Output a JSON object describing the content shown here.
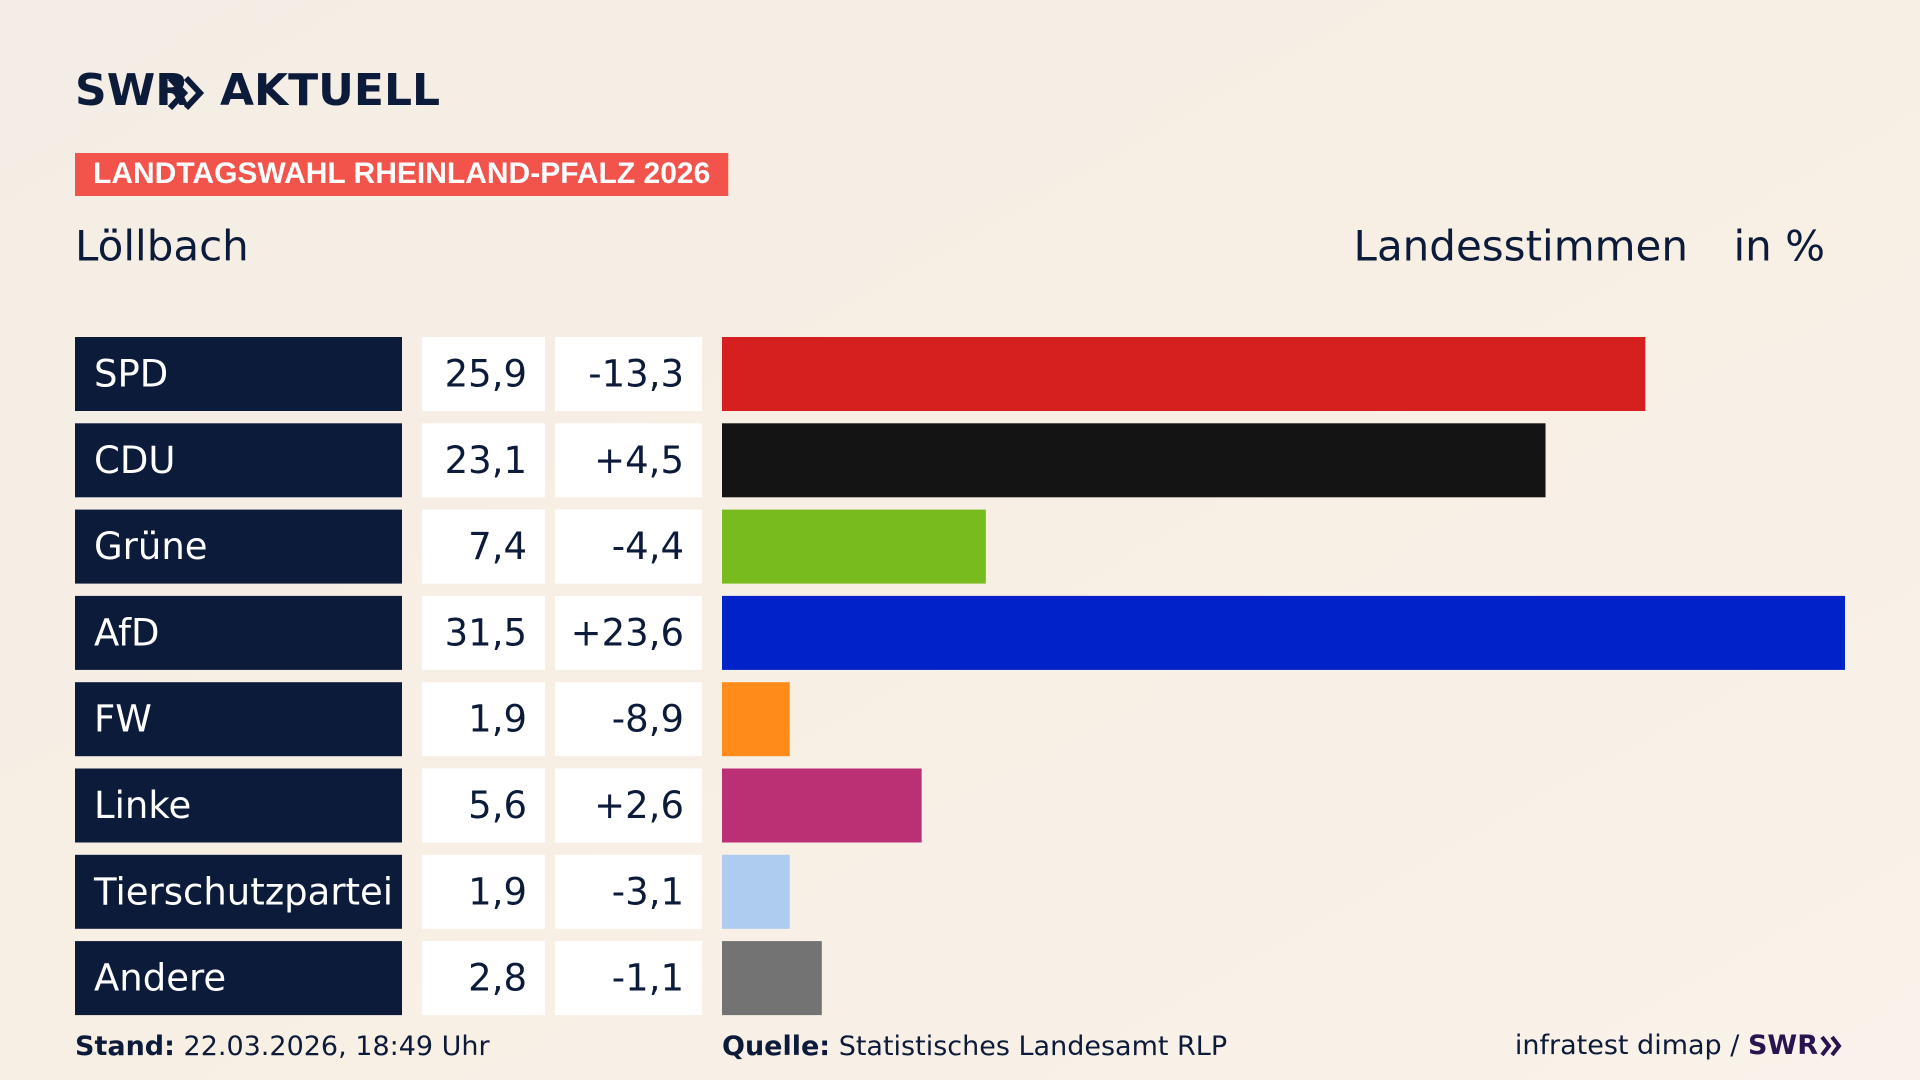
{
  "logo": "SWR",
  "brand": "AKTUELL",
  "header": {
    "title": "LANDTAGSWAHL RHEINLAND-PFALZ 2026",
    "subtitle": "Löllbach",
    "measure": "Landesstimmen",
    "unit": "in %"
  },
  "chart_data": {
    "type": "bar",
    "orientation": "horizontal",
    "categories": [
      "SPD",
      "CDU",
      "Grüne",
      "AfD",
      "FW",
      "Linke",
      "Tierschutzpartei",
      "Andere"
    ],
    "values": [
      25.9,
      23.1,
      7.4,
      31.5,
      1.9,
      5.6,
      1.9,
      2.8
    ],
    "value_labels": [
      "25,9",
      "23,1",
      "7,4",
      "31,5",
      "1,9",
      "5,6",
      "1,9",
      "2,8"
    ],
    "changes": [
      -13.3,
      4.5,
      -4.4,
      23.6,
      -8.9,
      2.6,
      -3.1,
      -1.1
    ],
    "change_labels": [
      "-13,3",
      "+4,5",
      "-4,4",
      "+23,6",
      "-8,9",
      "+2,6",
      "-3,1",
      "-1,1"
    ],
    "colors": [
      "#d61f1f",
      "#141414",
      "#78bb1e",
      "#0022c8",
      "#ff8c1a",
      "#bb2f75",
      "#aecbf0",
      "#737373"
    ],
    "xlim": [
      0,
      31.5
    ]
  },
  "footer": {
    "stand_label": "Stand:",
    "stand": "22.03.2026, 18:49 Uhr",
    "source_label": "Quelle:",
    "source": "Statistisches Landesamt RLP",
    "credit": "infratest dimap /",
    "credit_logo": "SWR"
  }
}
